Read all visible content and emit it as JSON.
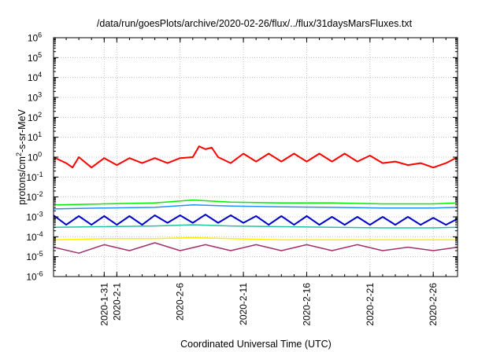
{
  "chart_data": {
    "type": "line",
    "title": "/data/run/goesPlots/archive/2020-02-26/flux/../flux/31daysMarsFluxes.txt",
    "xlabel": "Coordinated Universal Time (UTC)",
    "ylabel": {
      "prefix": "protons/cm",
      "sup": "2",
      "suffix": "-s-sr-MeV"
    },
    "x_range": [
      "2020-01-27",
      "2020-02-27T22:00"
    ],
    "x_ticks": [
      "2020-1-31",
      "2020-2-1",
      "2020-2-6",
      "2020-2-11",
      "2020-2-16",
      "2020-2-21",
      "2020-2-26"
    ],
    "y_scale": "log",
    "ylim": [
      1e-06,
      1000000.0
    ],
    "y_ticks": [
      {
        "base": "10",
        "exp": "6"
      },
      {
        "base": "10",
        "exp": "5"
      },
      {
        "base": "10",
        "exp": "4"
      },
      {
        "base": "10",
        "exp": "3"
      },
      {
        "base": "10",
        "exp": "2"
      },
      {
        "base": "10",
        "exp": "1"
      },
      {
        "base": "10",
        "exp": "0"
      },
      {
        "base": "10",
        "exp": "-1"
      },
      {
        "base": "10",
        "exp": "-2"
      },
      {
        "base": "10",
        "exp": "-3"
      },
      {
        "base": "10",
        "exp": "-4"
      },
      {
        "base": "10",
        "exp": "-5"
      },
      {
        "base": "10",
        "exp": "-6"
      }
    ],
    "grid": true,
    "series": [
      {
        "color": "#ff0000",
        "width": 2.0,
        "points": [
          [
            "2020-01-27",
            1.0
          ],
          [
            "2020-01-28",
            0.5
          ],
          [
            "2020-01-28T12:00",
            0.3
          ],
          [
            "2020-01-29",
            1.0
          ],
          [
            "2020-01-30",
            0.3
          ],
          [
            "2020-01-31",
            0.9
          ],
          [
            "2020-02-01",
            0.4
          ],
          [
            "2020-02-02",
            0.9
          ],
          [
            "2020-02-03",
            0.5
          ],
          [
            "2020-02-04",
            0.9
          ],
          [
            "2020-02-05",
            0.5
          ],
          [
            "2020-02-06",
            0.9
          ],
          [
            "2020-02-07",
            1.0
          ],
          [
            "2020-02-07T12:00",
            3.5
          ],
          [
            "2020-02-08",
            2.5
          ],
          [
            "2020-02-08T12:00",
            3.0
          ],
          [
            "2020-02-09",
            1.0
          ],
          [
            "2020-02-10",
            0.5
          ],
          [
            "2020-02-11",
            1.5
          ],
          [
            "2020-02-12",
            0.6
          ],
          [
            "2020-02-13",
            1.5
          ],
          [
            "2020-02-14",
            0.6
          ],
          [
            "2020-02-15",
            1.5
          ],
          [
            "2020-02-16",
            0.6
          ],
          [
            "2020-02-17",
            1.5
          ],
          [
            "2020-02-18",
            0.6
          ],
          [
            "2020-02-19",
            1.5
          ],
          [
            "2020-02-20",
            0.6
          ],
          [
            "2020-02-21",
            1.2
          ],
          [
            "2020-02-22",
            0.5
          ],
          [
            "2020-02-23",
            0.6
          ],
          [
            "2020-02-24",
            0.4
          ],
          [
            "2020-02-25",
            0.5
          ],
          [
            "2020-02-26",
            0.3
          ],
          [
            "2020-02-27",
            0.5
          ],
          [
            "2020-02-27T22:00",
            1.0
          ]
        ]
      },
      {
        "color": "#00ee00",
        "width": 1.5,
        "points": [
          [
            "2020-01-27",
            0.004
          ],
          [
            "2020-01-31",
            0.0045
          ],
          [
            "2020-02-04",
            0.005
          ],
          [
            "2020-02-07",
            0.007
          ],
          [
            "2020-02-10",
            0.0055
          ],
          [
            "2020-02-14",
            0.005
          ],
          [
            "2020-02-18",
            0.005
          ],
          [
            "2020-02-22",
            0.0045
          ],
          [
            "2020-02-26",
            0.0045
          ],
          [
            "2020-02-27T22:00",
            0.005
          ]
        ]
      },
      {
        "color": "#1e90ff",
        "width": 1.5,
        "points": [
          [
            "2020-01-27",
            0.0025
          ],
          [
            "2020-01-31",
            0.0028
          ],
          [
            "2020-02-04",
            0.003
          ],
          [
            "2020-02-07",
            0.004
          ],
          [
            "2020-02-10",
            0.0035
          ],
          [
            "2020-02-14",
            0.0032
          ],
          [
            "2020-02-18",
            0.003
          ],
          [
            "2020-02-22",
            0.0028
          ],
          [
            "2020-02-26",
            0.0028
          ],
          [
            "2020-02-27T22:00",
            0.003
          ]
        ]
      },
      {
        "color": "#0000cd",
        "width": 2.0,
        "points": [
          [
            "2020-01-27",
            0.0012
          ],
          [
            "2020-01-28",
            0.0004
          ],
          [
            "2020-01-29",
            0.0011
          ],
          [
            "2020-01-30",
            0.0004
          ],
          [
            "2020-01-31",
            0.0011
          ],
          [
            "2020-02-01",
            0.0004
          ],
          [
            "2020-02-02",
            0.0011
          ],
          [
            "2020-02-03",
            0.0004
          ],
          [
            "2020-02-04",
            0.0012
          ],
          [
            "2020-02-05",
            0.0005
          ],
          [
            "2020-02-06",
            0.0012
          ],
          [
            "2020-02-07",
            0.0005
          ],
          [
            "2020-02-08",
            0.0013
          ],
          [
            "2020-02-09",
            0.0005
          ],
          [
            "2020-02-10",
            0.0012
          ],
          [
            "2020-02-11",
            0.0005
          ],
          [
            "2020-02-12",
            0.0011
          ],
          [
            "2020-02-13",
            0.0004
          ],
          [
            "2020-02-14",
            0.0011
          ],
          [
            "2020-02-15",
            0.0004
          ],
          [
            "2020-02-16",
            0.0011
          ],
          [
            "2020-02-17",
            0.0004
          ],
          [
            "2020-02-18",
            0.001
          ],
          [
            "2020-02-19",
            0.0004
          ],
          [
            "2020-02-20",
            0.001
          ],
          [
            "2020-02-21",
            0.0004
          ],
          [
            "2020-02-22",
            0.001
          ],
          [
            "2020-02-23",
            0.0004
          ],
          [
            "2020-02-24",
            0.001
          ],
          [
            "2020-02-25",
            0.0004
          ],
          [
            "2020-02-26",
            0.0009
          ],
          [
            "2020-02-27",
            0.0004
          ],
          [
            "2020-02-27T22:00",
            0.0008
          ]
        ]
      },
      {
        "color": "#20c0a0",
        "width": 1.5,
        "points": [
          [
            "2020-01-27",
            0.0003
          ],
          [
            "2020-01-31",
            0.00032
          ],
          [
            "2020-02-04",
            0.00035
          ],
          [
            "2020-02-07",
            0.0004
          ],
          [
            "2020-02-10",
            0.00035
          ],
          [
            "2020-02-14",
            0.00032
          ],
          [
            "2020-02-18",
            0.0003
          ],
          [
            "2020-02-22",
            0.00028
          ],
          [
            "2020-02-26",
            0.00028
          ],
          [
            "2020-02-27T22:00",
            0.0003
          ]
        ]
      },
      {
        "color": "#ffee00",
        "width": 1.5,
        "points": [
          [
            "2020-01-27",
            7e-05
          ],
          [
            "2020-01-31",
            8e-05
          ],
          [
            "2020-02-04",
            8e-05
          ],
          [
            "2020-02-07",
            9e-05
          ],
          [
            "2020-02-10",
            8e-05
          ],
          [
            "2020-02-14",
            7e-05
          ],
          [
            "2020-02-18",
            7e-05
          ],
          [
            "2020-02-22",
            7e-05
          ],
          [
            "2020-02-26",
            7e-05
          ],
          [
            "2020-02-27T22:00",
            7e-05
          ]
        ]
      },
      {
        "color": "#a0306a",
        "width": 1.5,
        "points": [
          [
            "2020-01-27",
            3e-05
          ],
          [
            "2020-01-29",
            1.5e-05
          ],
          [
            "2020-01-31",
            4e-05
          ],
          [
            "2020-02-02",
            2e-05
          ],
          [
            "2020-02-04",
            5e-05
          ],
          [
            "2020-02-06",
            2e-05
          ],
          [
            "2020-02-08",
            4e-05
          ],
          [
            "2020-02-10",
            2e-05
          ],
          [
            "2020-02-12",
            4e-05
          ],
          [
            "2020-02-14",
            2e-05
          ],
          [
            "2020-02-16",
            4e-05
          ],
          [
            "2020-02-18",
            2e-05
          ],
          [
            "2020-02-20",
            4e-05
          ],
          [
            "2020-02-22",
            2e-05
          ],
          [
            "2020-02-24",
            3e-05
          ],
          [
            "2020-02-26",
            2e-05
          ],
          [
            "2020-02-27T22:00",
            3e-05
          ]
        ]
      }
    ]
  }
}
